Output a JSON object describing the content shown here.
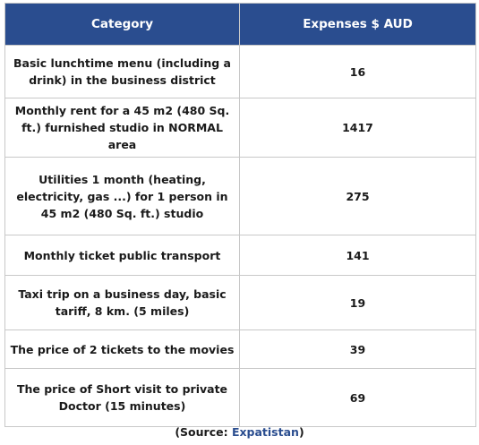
{
  "table": {
    "headers": [
      "Category",
      "Expenses $ AUD"
    ],
    "rows": [
      {
        "category": "Basic lunchtime menu (including a drink) in the business district",
        "expense": "16"
      },
      {
        "category": "Monthly rent for a 45 m2 (480 Sq. ft.) furnished studio in NORMAL area",
        "expense": "1417"
      },
      {
        "category": "Utilities 1 month (heating, electricity, gas ...) for 1 person in 45 m2 (480 Sq. ft.) studio",
        "expense": "275"
      },
      {
        "category": "Monthly ticket public transport",
        "expense": "141"
      },
      {
        "category": "Taxi trip on a business day, basic tariff, 8 km. (5 miles)",
        "expense": "19"
      },
      {
        "category": "The price of 2 tickets to the movies",
        "expense": "39"
      },
      {
        "category": "The price of Short visit to private Doctor (15 minutes)",
        "expense": "69"
      }
    ]
  },
  "source": {
    "prefix": "(Source: ",
    "link_text": "Expatistan",
    "suffix": ")"
  },
  "colors": {
    "header_bg": "#2a4d8f",
    "header_text": "#ffffff",
    "link": "#2a4d8f"
  }
}
